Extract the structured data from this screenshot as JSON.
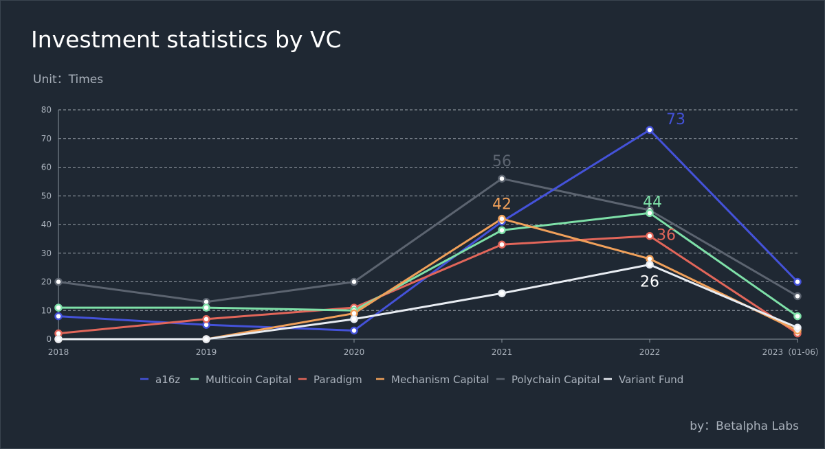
{
  "header": {
    "title": "Investment statistics by VC",
    "subtitle": "Unit：Times"
  },
  "footer": {
    "credit": "by：Betalpha Labs"
  },
  "chart_data": {
    "type": "line",
    "title": "Investment statistics by VC",
    "subtitle": "Unit：Times",
    "categories": [
      "2018",
      "2019",
      "2020",
      "2021",
      "2022",
      "2023（01-06）"
    ],
    "ylim": [
      0,
      80
    ],
    "yticks": [
      0,
      10,
      20,
      30,
      40,
      50,
      60,
      70,
      80
    ],
    "grid": true,
    "legend_position": "bottom",
    "series": [
      {
        "name": "a16z",
        "color": "#4452d9",
        "values": [
          8,
          5,
          3,
          41,
          73,
          20
        ]
      },
      {
        "name": "Multicoin Capital",
        "color": "#7ee0a8",
        "values": [
          11,
          11,
          10,
          38,
          44,
          8
        ]
      },
      {
        "name": "Paradigm",
        "color": "#e2665a",
        "values": [
          2,
          7,
          11,
          33,
          36,
          2
        ]
      },
      {
        "name": "Mechanism Capital",
        "color": "#f0a05a",
        "values": [
          0,
          0,
          9,
          42,
          28,
          3
        ]
      },
      {
        "name": "Polychain Capital",
        "color": "#5c6470",
        "values": [
          20,
          13,
          20,
          56,
          45,
          15
        ]
      },
      {
        "name": "Variant Fund",
        "color": "#e8ecf2",
        "values": [
          0,
          0,
          7,
          16,
          26,
          4
        ]
      }
    ],
    "annotations": [
      {
        "series": "a16z",
        "category": "2022",
        "text": "73"
      },
      {
        "series": "Polychain Capital",
        "category": "2021",
        "text": "56"
      },
      {
        "series": "Mechanism Capital",
        "category": "2021",
        "text": "42"
      },
      {
        "series": "Multicoin Capital",
        "category": "2022",
        "text": "44"
      },
      {
        "series": "Paradigm",
        "category": "2022",
        "text": "36"
      },
      {
        "series": "Variant Fund",
        "category": "2022",
        "text": "26"
      }
    ]
  }
}
